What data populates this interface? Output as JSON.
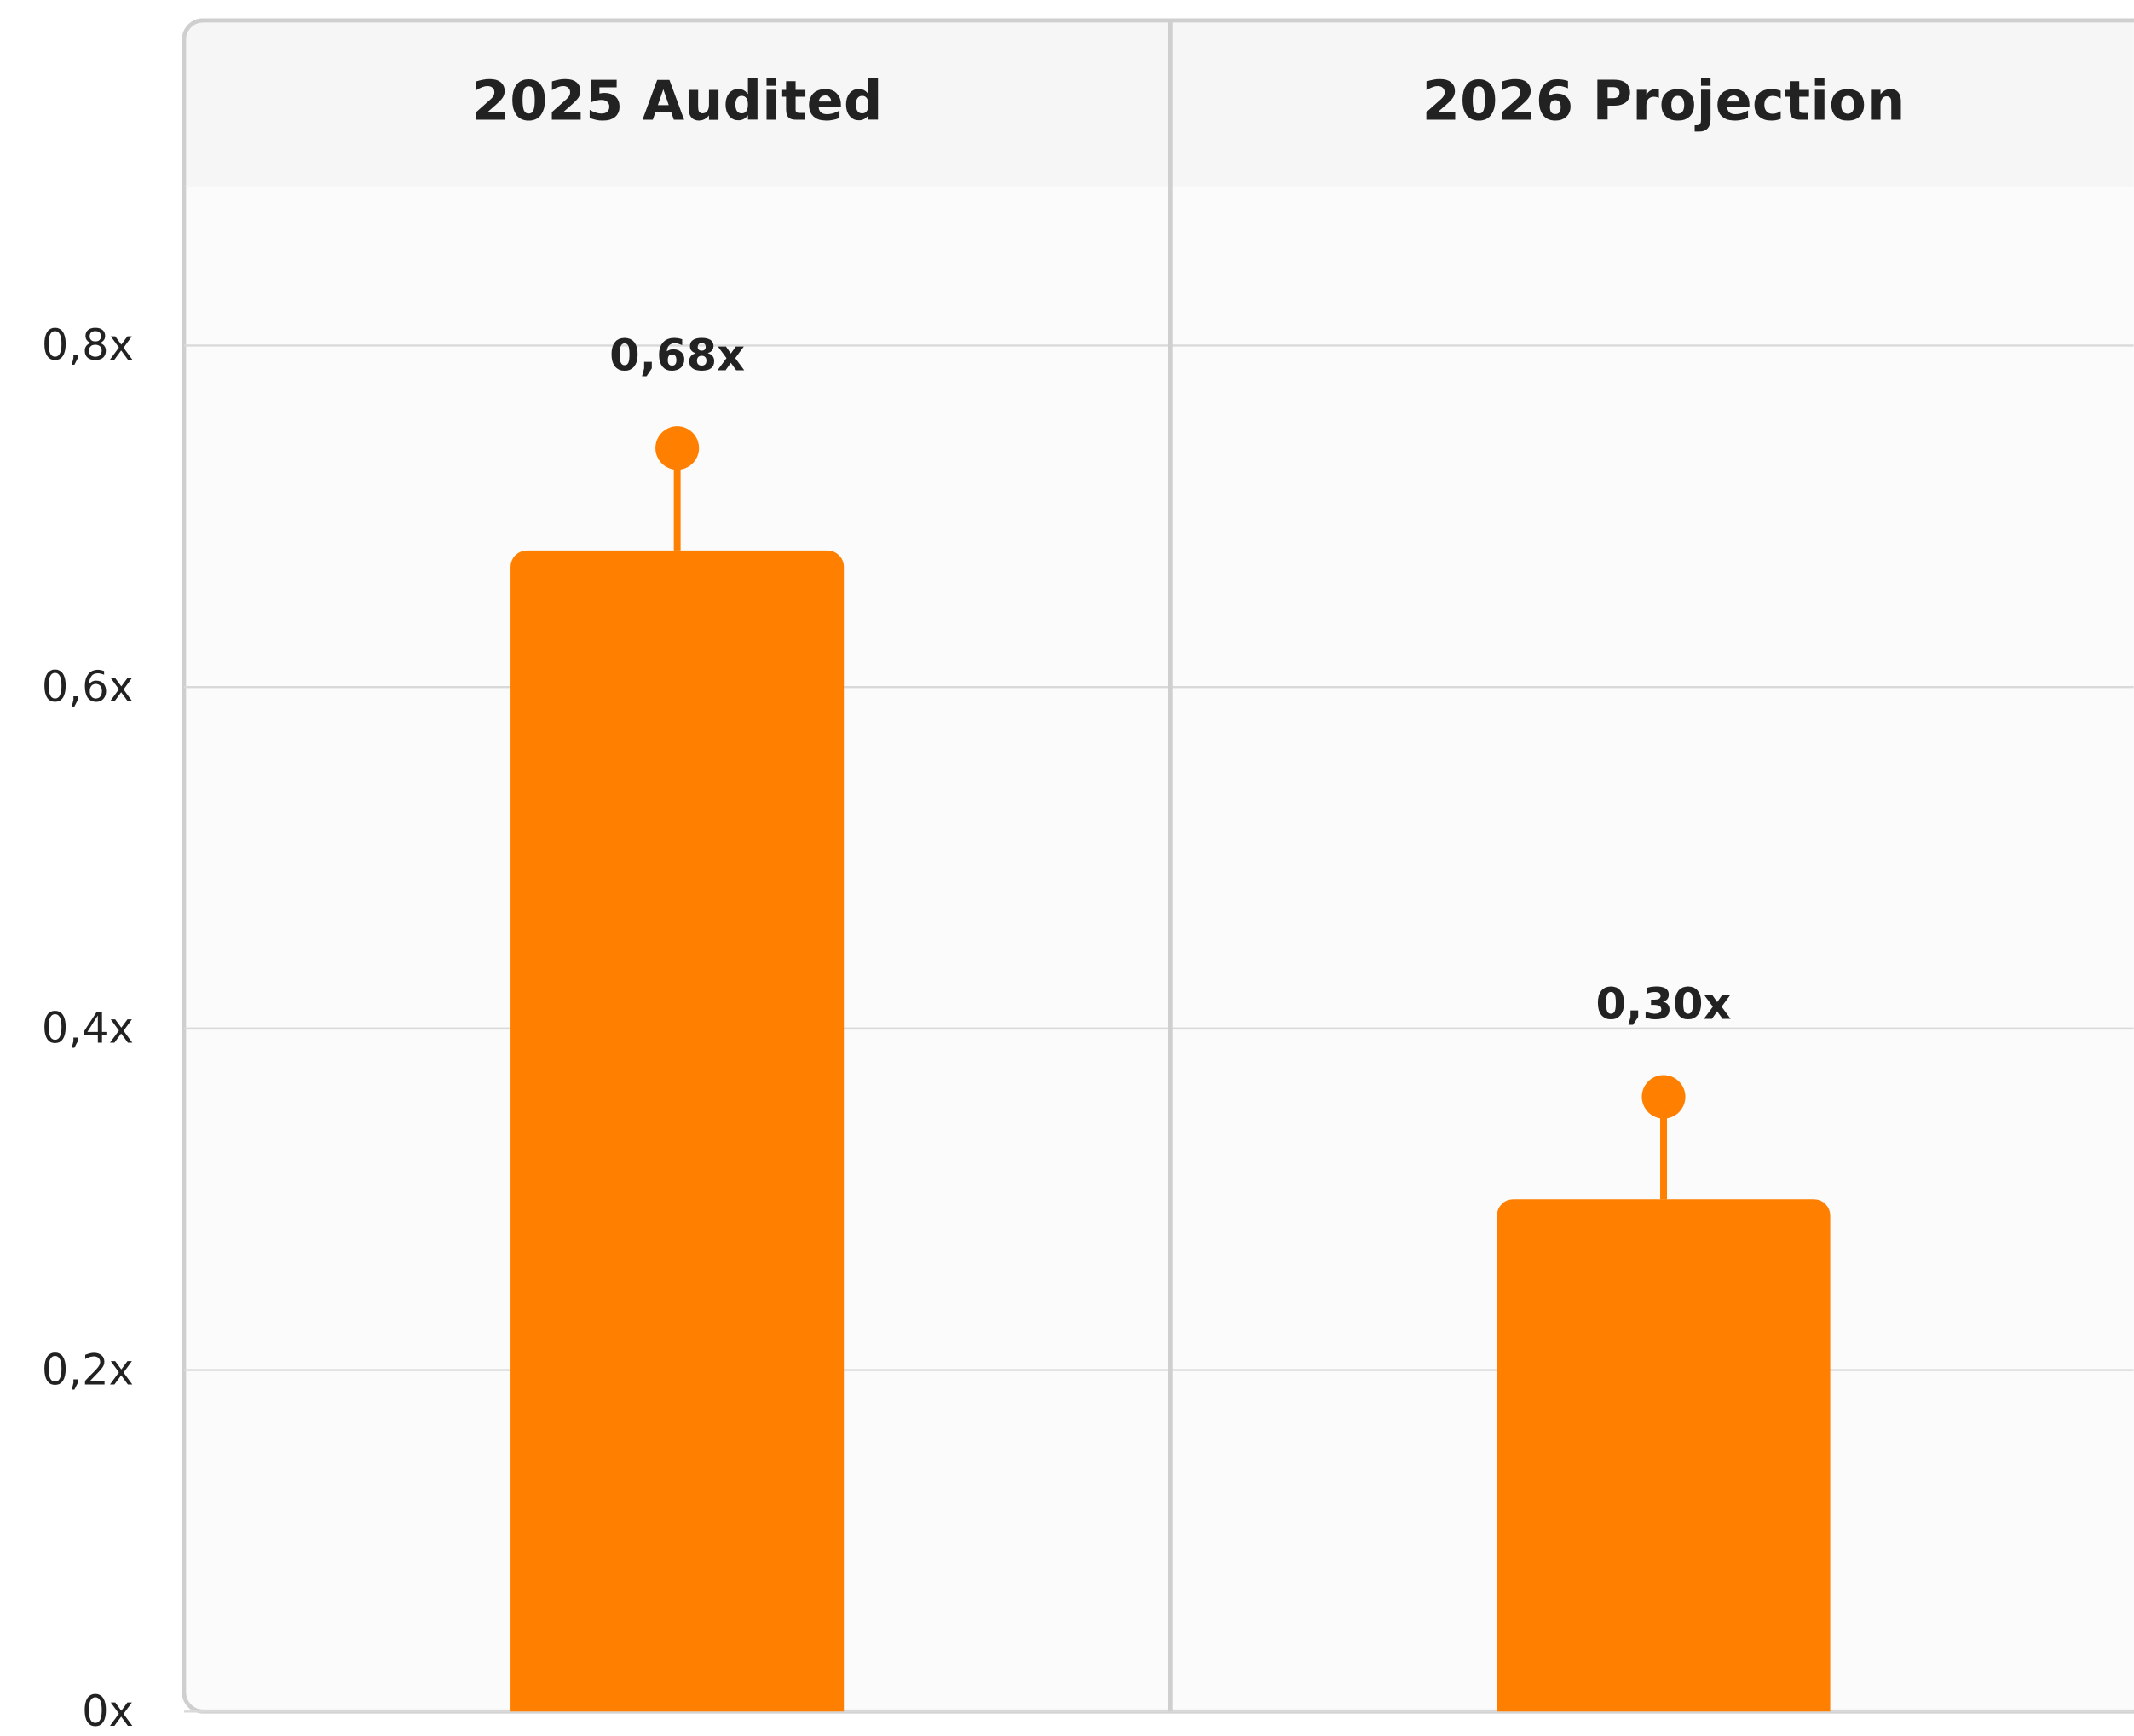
{
  "chart_data": {
    "type": "bar",
    "categories": [
      "2025 Audited",
      "2026 Projection"
    ],
    "values": [
      0.68,
      0.3
    ],
    "value_labels": [
      "0,68x",
      "0,30x"
    ],
    "errors": [
      0.06,
      0.06
    ],
    "color": "#ff7f00",
    "ylim": [
      0,
      0.9
    ],
    "yticks": [
      {
        "value": 0,
        "label": "0x"
      },
      {
        "value": 0.2,
        "label": "0,2x"
      },
      {
        "value": 0.4,
        "label": "0,4x"
      },
      {
        "value": 0.6,
        "label": "0,6x"
      },
      {
        "value": 0.8,
        "label": "0,8x"
      }
    ],
    "grid": true
  }
}
